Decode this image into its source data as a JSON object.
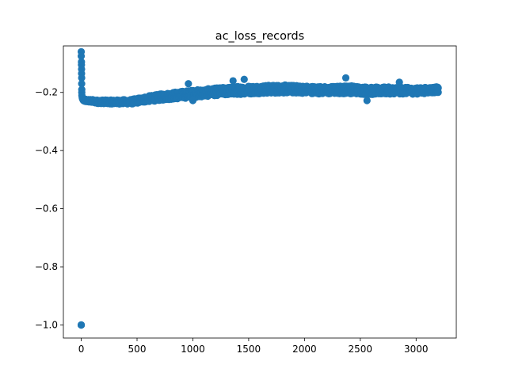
{
  "chart_data": {
    "type": "scatter",
    "title": "ac_loss_records",
    "xlabel": "",
    "ylabel": "",
    "xlim": [
      -160,
      3360
    ],
    "ylim": [
      -1.045,
      -0.04
    ],
    "xticks": [
      0,
      500,
      1000,
      1500,
      2000,
      2500,
      3000
    ],
    "xtick_labels": [
      "0",
      "500",
      "1000",
      "1500",
      "2000",
      "2500",
      "3000"
    ],
    "yticks": [
      -1.0,
      -0.8,
      -0.6,
      -0.4,
      -0.2
    ],
    "ytick_labels": [
      "−1.0",
      "−0.8",
      "−0.6",
      "−0.4",
      "−0.2"
    ],
    "grid": false,
    "marker_color": "#1f77b4",
    "series": [
      {
        "points_description_x": [
          0,
          0,
          0,
          0,
          0,
          2,
          2,
          3,
          3,
          4,
          4,
          5,
          5,
          6,
          8,
          10,
          15,
          20,
          30
        ],
        "points_description_y": [
          -1.0,
          -1.0,
          -1.0,
          -0.06,
          -0.075,
          -0.095,
          -0.105,
          -0.12,
          -0.135,
          -0.15,
          -0.17,
          -0.19,
          -0.2,
          -0.21,
          -0.215,
          -0.22,
          -0.225,
          -0.228,
          -0.23
        ],
        "envelope_x": [
          50,
          150,
          300,
          450,
          600,
          800,
          1000,
          1200,
          1400,
          1600,
          1800,
          2000,
          2200,
          2400,
          2600,
          2800,
          3000,
          3200
        ],
        "envelope_center_y": [
          -0.228,
          -0.232,
          -0.233,
          -0.232,
          -0.222,
          -0.212,
          -0.205,
          -0.198,
          -0.193,
          -0.19,
          -0.188,
          -0.19,
          -0.193,
          -0.19,
          -0.195,
          -0.193,
          -0.195,
          -0.19
        ],
        "envelope_spread": [
          0.005,
          0.006,
          0.007,
          0.008,
          0.01,
          0.012,
          0.013,
          0.013,
          0.014,
          0.014,
          0.014,
          0.013,
          0.013,
          0.014,
          0.013,
          0.012,
          0.011,
          0.01
        ]
      }
    ]
  }
}
